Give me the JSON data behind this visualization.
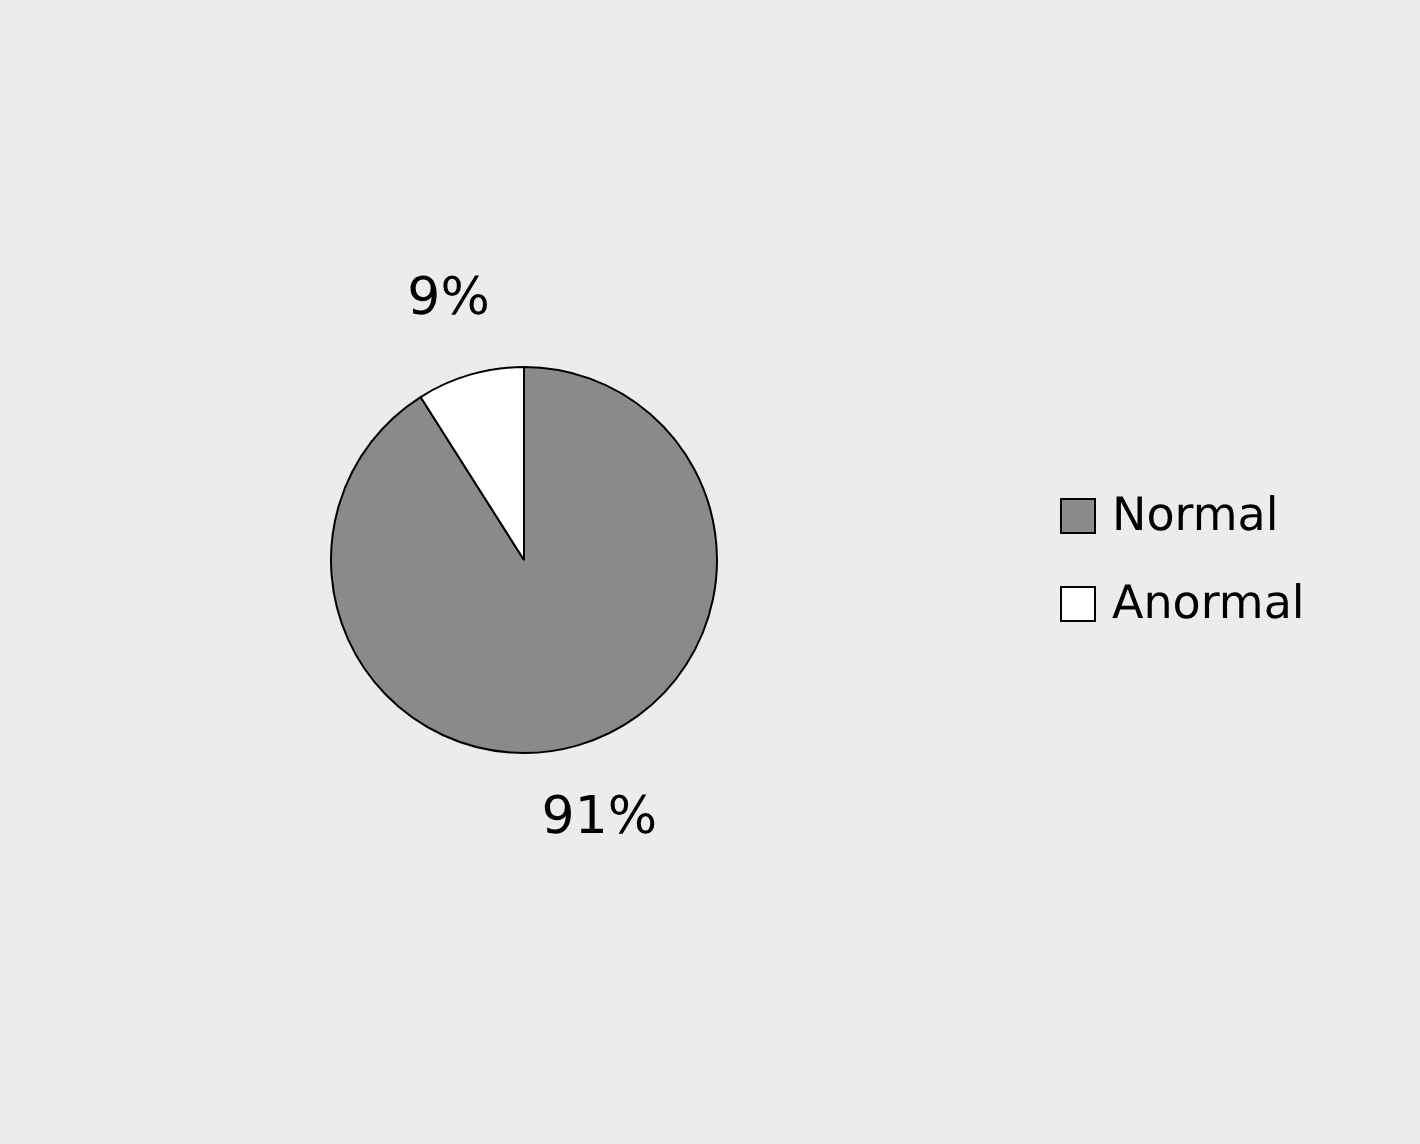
{
  "chart_data": {
    "type": "pie",
    "categories": [
      "Normal",
      "Anormal"
    ],
    "values": [
      91,
      9
    ],
    "colors": [
      "#8a8a8a",
      "#ffffff"
    ],
    "value_labels": [
      "91%",
      "9%"
    ],
    "legend": "right"
  }
}
